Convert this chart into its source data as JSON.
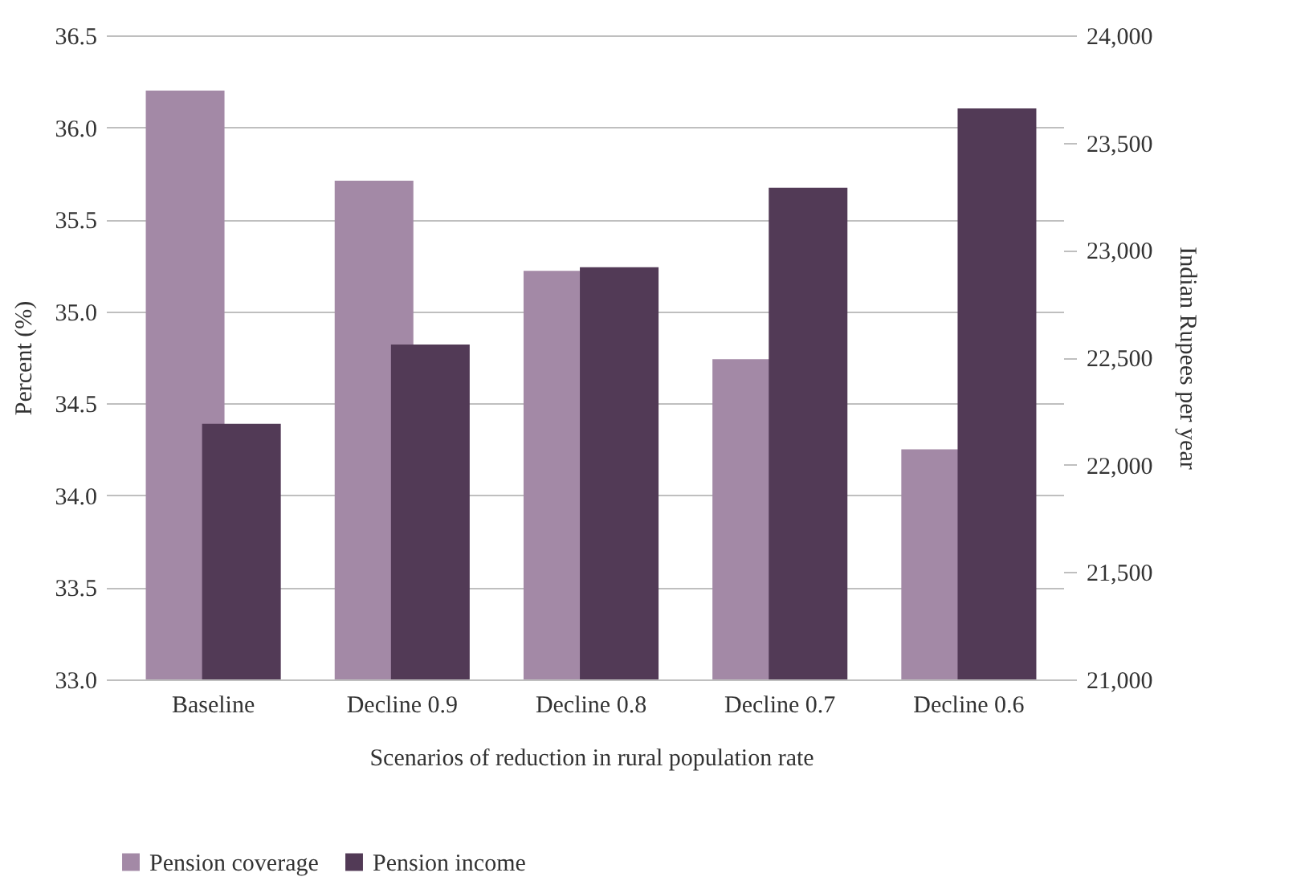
{
  "chart_data": {
    "type": "bar",
    "categories": [
      "Baseline",
      "Decline 0.9",
      "Decline 0.8",
      "Decline 0.7",
      "Decline 0.6"
    ],
    "series": [
      {
        "name": "Pension coverage",
        "color": "#a389a6",
        "values": [
          36.2,
          35.71,
          35.22,
          34.74,
          34.25
        ]
      },
      {
        "name": "Pension income",
        "color": "#523a56",
        "axis": "y2",
        "values": [
          22190,
          22560,
          22920,
          23290,
          23660
        ]
      }
    ],
    "xlabel": "Scenarios of reduction in rural population rate",
    "ylabel": "Percent (%)",
    "y2label": "Indian Rupees per year",
    "ylim": [
      33.0,
      36.5
    ],
    "yticks": [
      {
        "value": 33.0,
        "label": "33.0"
      },
      {
        "value": 33.5,
        "label": "33.5"
      },
      {
        "value": 34.0,
        "label": "34.0"
      },
      {
        "value": 34.5,
        "label": "34.5"
      },
      {
        "value": 35.0,
        "label": "35.0"
      },
      {
        "value": 35.5,
        "label": "35.5"
      },
      {
        "value": 36.0,
        "label": "36.0"
      },
      {
        "value": 36.5,
        "label": "36.5"
      }
    ],
    "y2lim": [
      21000,
      24000
    ],
    "y2ticks": [
      {
        "value": 21000,
        "label": "21,000"
      },
      {
        "value": 21500,
        "label": "21,500"
      },
      {
        "value": 22000,
        "label": "22,000"
      },
      {
        "value": 22500,
        "label": "22,500"
      },
      {
        "value": 23000,
        "label": "23,000"
      },
      {
        "value": 23500,
        "label": "23,500"
      },
      {
        "value": 24000,
        "label": "24,000"
      }
    ],
    "grid": "y",
    "legend": "bottom"
  }
}
